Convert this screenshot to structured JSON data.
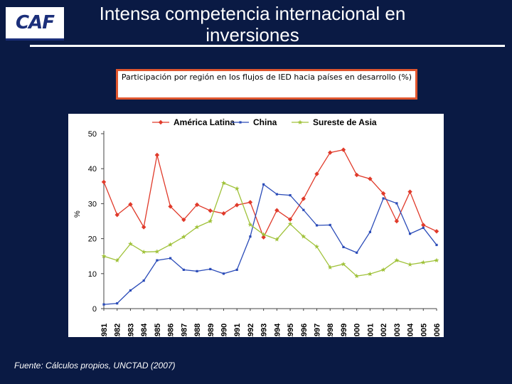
{
  "logo": {
    "text": "CAF"
  },
  "slide": {
    "title": "Intensa competencia internacional en inversiones",
    "caption": "Participación por región en los flujos de IED hacia países en desarrollo (%)",
    "source": "Fuente: Cálculos propios, UNCTAD (2007)"
  },
  "chart_data": {
    "type": "line",
    "title": "",
    "xlabel": "",
    "ylabel": "%",
    "ylim": [
      0,
      50
    ],
    "yticks": [
      0,
      10,
      20,
      30,
      40,
      50
    ],
    "grid": false,
    "legend_position": "top",
    "categories": [
      "1981",
      "1982",
      "1983",
      "1984",
      "1985",
      "1986",
      "1987",
      "1988",
      "1989",
      "1990",
      "1991",
      "1992",
      "1993",
      "1994",
      "1995",
      "1996",
      "1997",
      "1998",
      "1999",
      "2000",
      "2001",
      "2002",
      "2003",
      "2004",
      "2005",
      "2006"
    ],
    "series": [
      {
        "name": "América Latina",
        "color": "#e03a2a",
        "marker": "diamond",
        "values": [
          36.2,
          26.8,
          29.8,
          23.3,
          43.9,
          29.2,
          25.4,
          29.7,
          28.0,
          27.2,
          29.6,
          30.4,
          20.4,
          28.1,
          25.5,
          31.4,
          38.5,
          44.6,
          45.4,
          38.2,
          37.1,
          32.9,
          25.0,
          33.4,
          23.9,
          22.1
        ]
      },
      {
        "name": "China",
        "color": "#2a4bb8",
        "marker": "square",
        "values": [
          1.2,
          1.5,
          5.2,
          8.0,
          13.8,
          14.4,
          11.1,
          10.7,
          11.3,
          10.0,
          11.1,
          20.6,
          35.5,
          32.7,
          32.4,
          28.2,
          23.8,
          23.9,
          17.6,
          16.0,
          21.9,
          31.5,
          30.1,
          21.4,
          23.1,
          18.2
        ]
      },
      {
        "name": "Sureste de Asia",
        "color": "#a0c23a",
        "marker": "star",
        "values": [
          15.0,
          13.8,
          18.5,
          16.2,
          16.3,
          18.3,
          20.5,
          23.3,
          25.0,
          35.9,
          34.3,
          24.0,
          21.2,
          19.8,
          24.2,
          20.6,
          17.7,
          11.8,
          12.7,
          9.3,
          9.9,
          11.1,
          13.8,
          12.6,
          13.2,
          13.8
        ]
      }
    ]
  }
}
